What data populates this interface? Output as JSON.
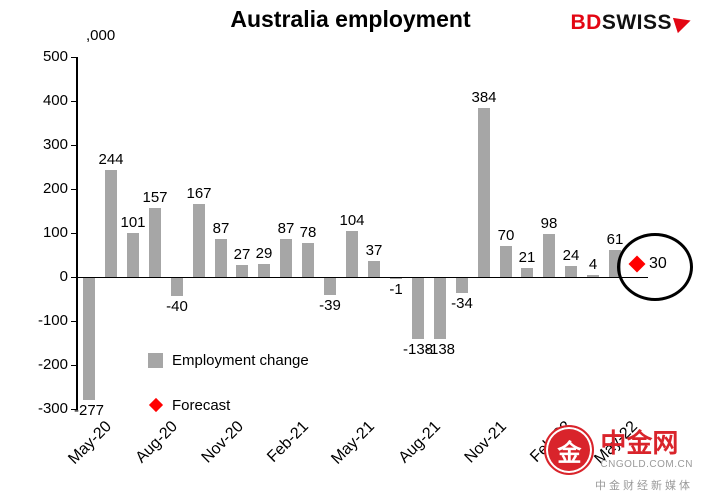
{
  "logo": {
    "bd": "BD",
    "swiss": "SWISS"
  },
  "chart_data": {
    "type": "bar",
    "title": "Australia employment",
    "unit_label": ",000",
    "xlabel": "",
    "ylabel": "",
    "ylim": [
      -300,
      500
    ],
    "yticks": [
      500,
      400,
      300,
      200,
      100,
      0,
      -100,
      -200,
      -300
    ],
    "grid": false,
    "legend_position": "inside-lower-left",
    "categories": [
      "May-20",
      "Jun-20",
      "Jul-20",
      "Aug-20",
      "Sep-20",
      "Oct-20",
      "Nov-20",
      "Dec-20",
      "Jan-21",
      "Feb-21",
      "Mar-21",
      "Apr-21",
      "May-21",
      "Jun-21",
      "Jul-21",
      "Aug-21",
      "Sep-21",
      "Oct-21",
      "Nov-21",
      "Dec-21",
      "Jan-22",
      "Feb-22",
      "Mar-22",
      "Apr-22",
      "May-22"
    ],
    "values": [
      -277,
      244,
      101,
      157,
      -40,
      167,
      87,
      27,
      29,
      87,
      78,
      -39,
      104,
      37,
      -1,
      -138,
      -138,
      -34,
      384,
      70,
      21,
      98,
      24,
      4,
      61
    ],
    "x_tick_labels": [
      "May-20",
      "Aug-20",
      "Nov-20",
      "Feb-21",
      "May-21",
      "Aug-21",
      "Nov-21",
      "Feb-22",
      "May-22"
    ],
    "series_name": "Employment change",
    "forecast": {
      "label": "Forecast",
      "value": 30
    },
    "legend": [
      {
        "label": "Employment change",
        "color": "#a6a6a6"
      },
      {
        "label": "Forecast",
        "color": "#ff0000"
      }
    ],
    "bar_color": "#a6a6a6",
    "forecast_color": "#ff0000"
  },
  "watermark": {
    "name": "中金网",
    "domain": "CNGOLD.COM.CN",
    "tagline": "中金财经新媒体",
    "logo_char": "金",
    "color": "#d9242b"
  }
}
